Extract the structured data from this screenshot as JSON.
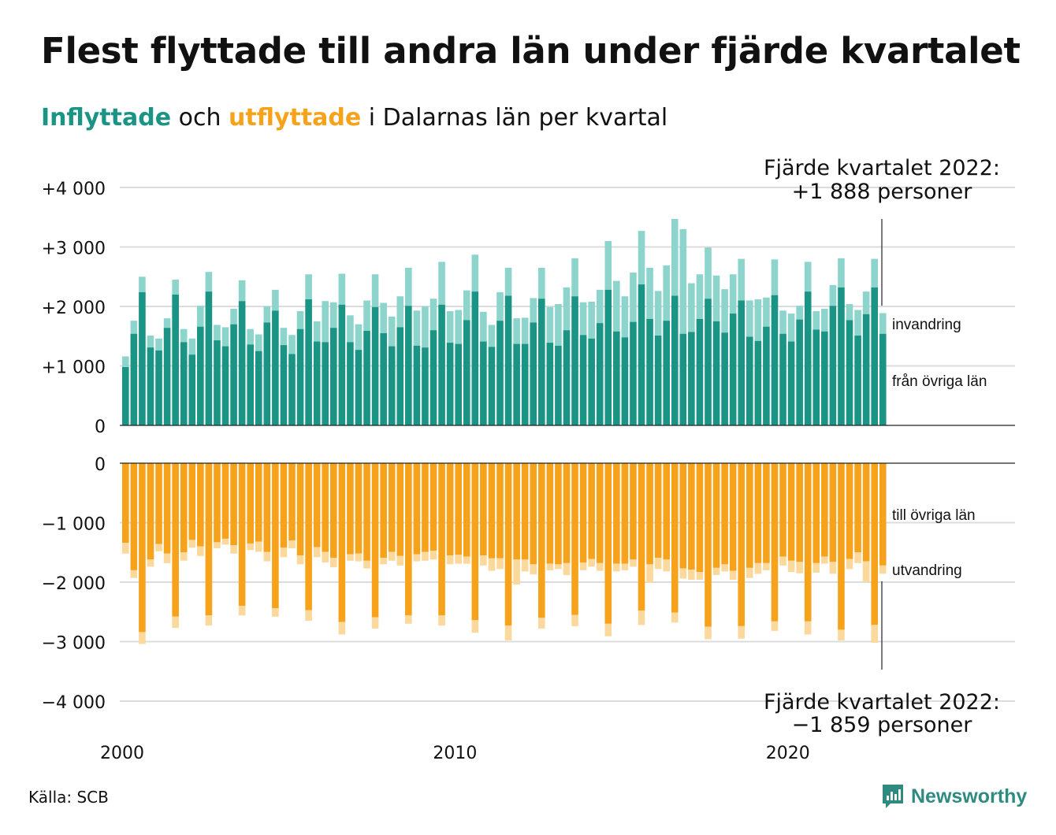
{
  "title": "Flest flyttade till andra län under fjärde kvartalet",
  "subtitle": {
    "in_word": "Inflyttade",
    "and_word": " och ",
    "out_word": "utflyttade",
    "rest": " i Dalarnas län per kvartal"
  },
  "colors": {
    "in_domestic": "#1a9485",
    "in_immigration": "#8dd5cc",
    "out_domestic": "#f7a21b",
    "out_emigration": "#fbd89c",
    "grid": "#dcdcdc",
    "axis": "#222222"
  },
  "source": "Källa: SCB",
  "logo": {
    "icon": "newsworthy-chart-icon",
    "text": "Newsworthy"
  },
  "chart_data": {
    "type": "bar",
    "stacked": true,
    "x_start": "2000 Q1",
    "x_ticks": [
      "2000",
      "2010",
      "2020"
    ],
    "annotations": {
      "top_line1": "Fjärde kvartalet 2022:",
      "top_line2": "+1 888 personer",
      "bottom_line1": "Fjärde kvartalet 2022:",
      "bottom_line2": "−1 859 personer"
    },
    "top_panel": {
      "ylim": [
        0,
        4000
      ],
      "yticks": [
        0,
        1000,
        2000,
        3000,
        4000
      ],
      "ytick_labels": [
        "0",
        "+1 000",
        "+2 000",
        "+3 000",
        "+4 000"
      ],
      "series_labels": {
        "immigration": "invandring",
        "domestic": "från övriga län"
      },
      "domestic": [
        980,
        1540,
        2240,
        1310,
        1260,
        1640,
        2200,
        1400,
        1190,
        1660,
        2250,
        1430,
        1330,
        1700,
        2090,
        1360,
        1250,
        1730,
        1930,
        1350,
        1200,
        1620,
        2120,
        1410,
        1400,
        1640,
        2030,
        1400,
        1270,
        1590,
        1990,
        1550,
        1330,
        1650,
        2010,
        1340,
        1310,
        1600,
        2030,
        1390,
        1370,
        1770,
        2250,
        1410,
        1320,
        1760,
        2180,
        1370,
        1370,
        1730,
        2130,
        1390,
        1340,
        1600,
        2170,
        1520,
        1460,
        1720,
        2280,
        1580,
        1480,
        1740,
        2370,
        1790,
        1510,
        1760,
        2180,
        1540,
        1570,
        1790,
        2130,
        1750,
        1560,
        1880,
        2100,
        1490,
        1420,
        1660,
        2190,
        1540,
        1410,
        1780,
        2250,
        1610,
        1580,
        2010,
        2320,
        1770,
        1510,
        1870,
        2320,
        1540
      ],
      "total": [
        1160,
        1760,
        2500,
        1510,
        1460,
        1800,
        2450,
        1620,
        1460,
        2010,
        2580,
        1690,
        1650,
        1960,
        2440,
        1620,
        1530,
        2000,
        2280,
        1640,
        1520,
        1920,
        2540,
        1750,
        2090,
        2070,
        2550,
        1850,
        1700,
        2100,
        2540,
        2060,
        1830,
        2170,
        2650,
        1930,
        2000,
        2130,
        2750,
        1920,
        1940,
        2270,
        2870,
        1910,
        1690,
        2240,
        2650,
        1800,
        1810,
        2140,
        2650,
        1990,
        2040,
        2320,
        2810,
        2070,
        2080,
        2280,
        3100,
        2430,
        2170,
        2570,
        3270,
        2650,
        2260,
        2690,
        3470,
        3300,
        2390,
        2540,
        2990,
        2520,
        2290,
        2540,
        2800,
        2100,
        2120,
        2150,
        2790,
        1930,
        1880,
        2010,
        2750,
        1920,
        1960,
        2360,
        2810,
        2040,
        1940,
        2250,
        2800,
        1888
      ]
    },
    "bottom_panel": {
      "ylim": [
        -4000,
        0
      ],
      "yticks": [
        0,
        -1000,
        -2000,
        -3000,
        -4000
      ],
      "ytick_labels": [
        "0",
        "−1 000",
        "−2 000",
        "−3 000",
        "−4 000"
      ],
      "series_labels": {
        "domestic": "till övriga län",
        "emigration": "utvandring"
      },
      "domestic": [
        -1340,
        -1800,
        -2840,
        -1620,
        -1360,
        -1520,
        -2580,
        -1500,
        -1290,
        -1400,
        -2560,
        -1330,
        -1270,
        -1380,
        -2400,
        -1350,
        -1320,
        -1490,
        -2440,
        -1420,
        -1300,
        -1550,
        -2470,
        -1410,
        -1490,
        -1590,
        -2670,
        -1530,
        -1520,
        -1640,
        -2590,
        -1590,
        -1490,
        -1560,
        -2560,
        -1530,
        -1490,
        -1470,
        -2560,
        -1550,
        -1540,
        -1570,
        -2640,
        -1550,
        -1600,
        -1600,
        -2730,
        -1620,
        -1620,
        -1700,
        -2600,
        -1690,
        -1700,
        -1680,
        -2550,
        -1670,
        -1610,
        -1680,
        -2700,
        -1690,
        -1690,
        -1620,
        -2480,
        -1700,
        -1590,
        -1620,
        -2510,
        -1770,
        -1790,
        -1830,
        -2750,
        -1760,
        -1700,
        -1810,
        -2740,
        -1760,
        -1680,
        -1680,
        -2660,
        -1570,
        -1640,
        -1660,
        -2660,
        -1680,
        -1570,
        -1660,
        -2800,
        -1610,
        -1500,
        -1650,
        -2720,
        -1720
      ],
      "total": [
        -1520,
        -1930,
        -3040,
        -1740,
        -1480,
        -1680,
        -2770,
        -1640,
        -1420,
        -1560,
        -2730,
        -1430,
        -1370,
        -1520,
        -2560,
        -1460,
        -1490,
        -1650,
        -2580,
        -1580,
        -1430,
        -1700,
        -2650,
        -1580,
        -1670,
        -1750,
        -2880,
        -1640,
        -1650,
        -1770,
        -2780,
        -1700,
        -1640,
        -1720,
        -2700,
        -1650,
        -1640,
        -1620,
        -2730,
        -1700,
        -1690,
        -1690,
        -2850,
        -1720,
        -1810,
        -1780,
        -2980,
        -2040,
        -1820,
        -1870,
        -2780,
        -1800,
        -1780,
        -1880,
        -2740,
        -1800,
        -1740,
        -1810,
        -2910,
        -1820,
        -1800,
        -1740,
        -2720,
        -2010,
        -1780,
        -1820,
        -2680,
        -1940,
        -1960,
        -1960,
        -2960,
        -1880,
        -1820,
        -1960,
        -2950,
        -1930,
        -1860,
        -1800,
        -2820,
        -1720,
        -1830,
        -1850,
        -2880,
        -1840,
        -1690,
        -1860,
        -2980,
        -1780,
        -1680,
        -2000,
        -3020,
        -1859
      ]
    }
  }
}
